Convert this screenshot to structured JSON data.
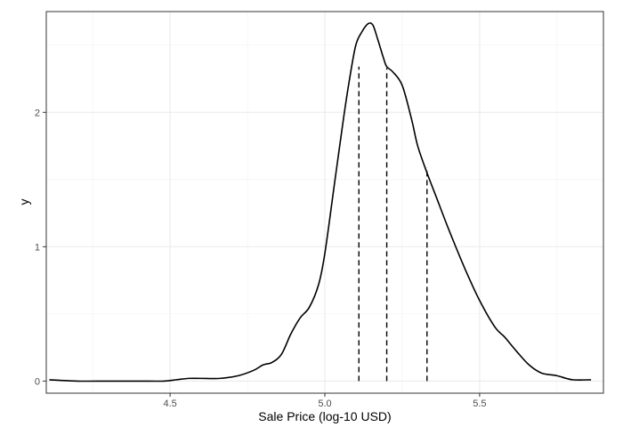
{
  "chart_data": {
    "type": "line",
    "title": "",
    "xlabel": "Sale Price (log-10 USD)",
    "ylabel": "y",
    "xlim": [
      4.1,
      5.9
    ],
    "ylim": [
      -0.09,
      2.75
    ],
    "x_ticks": [
      4.5,
      5.0,
      5.5
    ],
    "x_tick_labels": [
      "4.5",
      "5.0",
      "5.5"
    ],
    "y_ticks": [
      0,
      1,
      2
    ],
    "y_tick_labels": [
      "0",
      "1",
      "2"
    ],
    "grid": true,
    "legend": "none",
    "series": [
      {
        "x": [
          4.11,
          4.2,
          4.3,
          4.4,
          4.48,
          4.52,
          4.56,
          4.6,
          4.66,
          4.72,
          4.77,
          4.8,
          4.83,
          4.86,
          4.89,
          4.92,
          4.95,
          4.98,
          5.0,
          5.03,
          5.06,
          5.08,
          5.1,
          5.12,
          5.14,
          5.155,
          5.17,
          5.19,
          5.2,
          5.22,
          5.25,
          5.28,
          5.3,
          5.33,
          5.36,
          5.4,
          5.45,
          5.5,
          5.55,
          5.58,
          5.62,
          5.66,
          5.7,
          5.75,
          5.8,
          5.86
        ],
        "y": [
          0.01,
          0.0,
          0.0,
          0.0,
          0.0,
          0.01,
          0.02,
          0.02,
          0.02,
          0.04,
          0.08,
          0.12,
          0.14,
          0.2,
          0.35,
          0.47,
          0.55,
          0.72,
          0.95,
          1.45,
          1.95,
          2.25,
          2.5,
          2.6,
          2.66,
          2.65,
          2.55,
          2.4,
          2.34,
          2.3,
          2.2,
          1.95,
          1.75,
          1.55,
          1.37,
          1.13,
          0.85,
          0.6,
          0.4,
          0.33,
          0.22,
          0.12,
          0.06,
          0.04,
          0.01,
          0.01
        ]
      }
    ],
    "reference_lines": [
      {
        "x": 5.11,
        "y_top": 2.34
      },
      {
        "x": 5.2,
        "y_top": 2.33
      },
      {
        "x": 5.33,
        "y_top": 1.59
      }
    ]
  }
}
